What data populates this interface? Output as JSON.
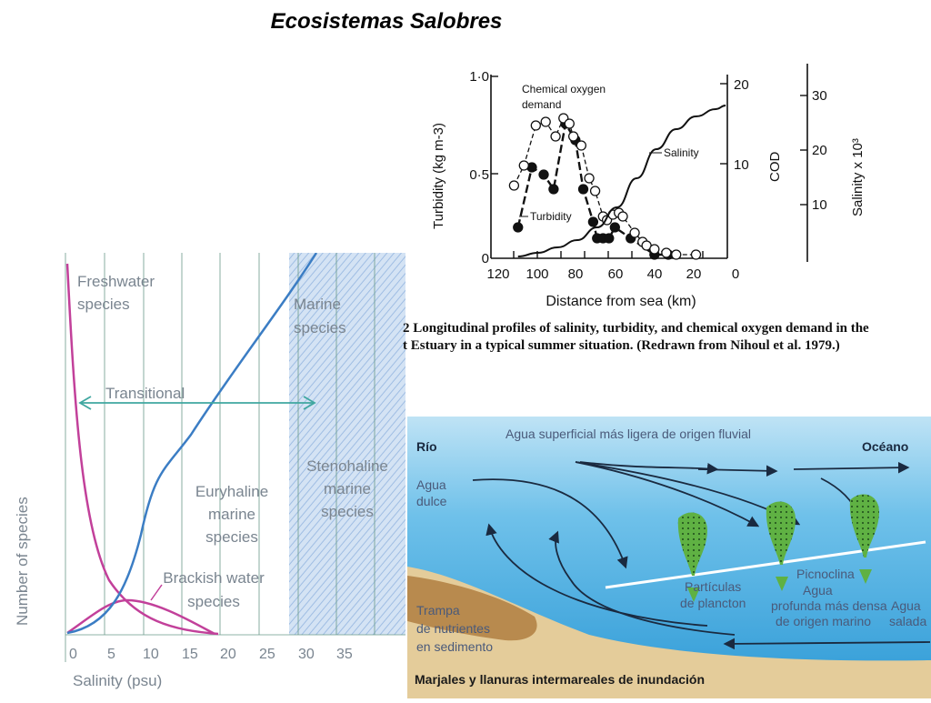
{
  "title": "Ecosistemas Salobres",
  "left_chart": {
    "type": "line",
    "xlabel": "Salinity (psu)",
    "ylabel": "Number of species",
    "x_ticks": [
      "0",
      "5",
      "10",
      "15",
      "20",
      "25",
      "30",
      "35"
    ],
    "labels": {
      "freshwater": [
        "Freshwater",
        "species"
      ],
      "marine": [
        "Marine",
        "species"
      ],
      "transitional": "Transitional",
      "euryhaline": [
        "Euryhaline",
        "marine",
        "species"
      ],
      "stenohaline": [
        "Stenohaline",
        "marine",
        "species"
      ],
      "brackish": [
        "Brackish water",
        "species"
      ]
    },
    "colors": {
      "freshwater": "#c2409a",
      "brackish": "#c2409a",
      "marine": "#3b7dc4",
      "transitional": "#3fa7a0",
      "stenohaline_zone": "#c5d8f0"
    }
  },
  "chart_data": {
    "type": "line",
    "xlabel": "Distance from sea (km)",
    "ylabel": "Turbidity (kg m-3)",
    "y2label": "COD",
    "y3label": "Salinity x 10³",
    "x_ticks": [
      "120",
      "100",
      "80",
      "60",
      "40",
      "20",
      "0"
    ],
    "y_ticks": [
      "0",
      "0·5",
      "1·0"
    ],
    "y2_ticks": [
      "10",
      "20"
    ],
    "y3_ticks": [
      "10",
      "20",
      "30"
    ],
    "xlim": [
      120,
      0
    ],
    "ylim": [
      0,
      1.0
    ],
    "series": [
      {
        "name": "Turbidity",
        "x": [
          110,
          103,
          97,
          92,
          86,
          81,
          77,
          72,
          70,
          67,
          64,
          61,
          53,
          41,
          34
        ],
        "y": [
          0.17,
          0.5,
          0.46,
          0.38,
          0.74,
          0.65,
          0.38,
          0.2,
          0.11,
          0.11,
          0.11,
          0.17,
          0.11,
          0.02,
          0.02
        ]
      },
      {
        "name": "Chemical oxygen demand",
        "x": [
          112,
          107,
          101,
          96,
          91,
          87,
          84,
          82,
          78,
          74,
          71,
          67,
          65,
          62,
          59,
          57,
          51,
          47,
          45,
          41,
          35,
          30,
          20
        ],
        "y": [
          0.4,
          0.51,
          0.73,
          0.75,
          0.67,
          0.77,
          0.74,
          0.67,
          0.62,
          0.44,
          0.37,
          0.23,
          0.21,
          0.24,
          0.25,
          0.23,
          0.14,
          0.09,
          0.07,
          0.05,
          0.03,
          0.02,
          0.02
        ]
      },
      {
        "name": "Salinity",
        "x": [
          110,
          100,
          90,
          80,
          70,
          60,
          50,
          40,
          30,
          20,
          10,
          5
        ],
        "y": [
          0.01,
          0.03,
          0.06,
          0.1,
          0.17,
          0.28,
          0.44,
          0.6,
          0.71,
          0.78,
          0.82,
          0.84
        ]
      }
    ],
    "annotations": [
      "Chemical oxygen",
      "demand",
      "Turbidity",
      "Salinity"
    ]
  },
  "caption": {
    "line1": "2  Longitudinal profiles of salinity, turbidity, and chemical oxygen demand in the",
    "line2": "t Estuary in a typical summer situation. (Redrawn from Nihoul et al. 1979.)"
  },
  "diagram": {
    "rio": "Río",
    "surface": "Agua superficial más ligera de origen fluvial",
    "oceano": "Océano",
    "agua_dulce": [
      "Agua",
      "dulce"
    ],
    "particulas": [
      "Partículas",
      "de plancton"
    ],
    "picnoclina": "Picnoclina",
    "profunda": [
      "Agua",
      "profunda más densa",
      "de origen marino"
    ],
    "salada": [
      "Agua",
      "salada"
    ],
    "trampa": [
      "Trampa",
      "de nutrientes",
      "en sedimento"
    ],
    "marjales": "Marjales y llanuras intermareales de inundación",
    "colors": {
      "water_top": "#bfe3f5",
      "water_bottom": "#2e9ad6",
      "sand": "#e4cc9a",
      "mud": "#b88a4e",
      "plankton": "#5fb143"
    }
  }
}
